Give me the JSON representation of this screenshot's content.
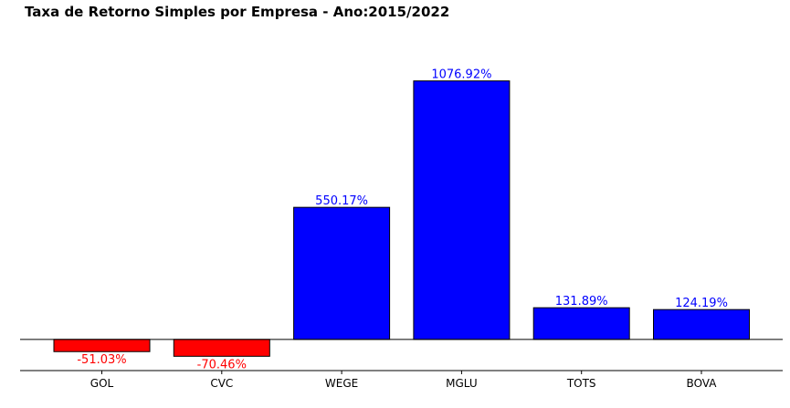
{
  "chart_data": {
    "type": "bar",
    "title": "Taxa de Retorno Simples por Empresa - Ano:2015/2022",
    "xlabel": "",
    "ylabel": "",
    "categories": [
      "GOL",
      "CVC",
      "WEGE",
      "MGLU",
      "TOTS",
      "BOVA"
    ],
    "values": [
      -51.03,
      -70.46,
      550.17,
      1076.92,
      131.89,
      124.19
    ],
    "value_labels": [
      "-51.03%",
      "-70.46%",
      "550.17%",
      "1076.92%",
      "131.89%",
      "124.19%"
    ],
    "ylim": [
      -130,
      1300
    ],
    "grid": false,
    "colors": {
      "positive": "#0000ff",
      "negative": "#ff0000",
      "edge": "#000000"
    }
  }
}
